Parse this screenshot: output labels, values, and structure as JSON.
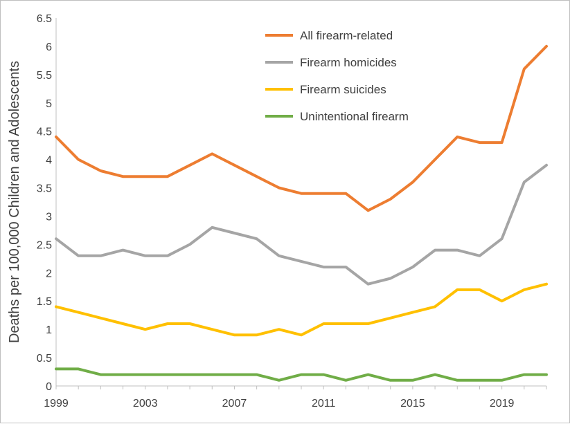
{
  "chart_data": {
    "type": "line",
    "title": "",
    "xlabel": "",
    "ylabel": "Deaths per 100,000 Children and Adolescents",
    "x": [
      1999,
      2000,
      2001,
      2002,
      2003,
      2004,
      2005,
      2006,
      2007,
      2008,
      2009,
      2010,
      2011,
      2012,
      2013,
      2014,
      2015,
      2016,
      2017,
      2018,
      2019,
      2020,
      2021
    ],
    "xlim": [
      1999,
      2021
    ],
    "x_tick_labels": [
      "1999",
      "2003",
      "2007",
      "2011",
      "2015",
      "2019"
    ],
    "ylim": [
      0,
      6.5
    ],
    "y_tick_labels": [
      "0",
      "0.5",
      "1",
      "1.5",
      "2",
      "2.5",
      "3",
      "3.5",
      "4",
      "4.5",
      "5",
      "5.5",
      "6",
      "6.5"
    ],
    "grid": false,
    "legend_position": "top-center",
    "series": [
      {
        "name": "All firearm-related",
        "color": "#ED7D31",
        "values": [
          4.4,
          4.0,
          3.8,
          3.7,
          3.7,
          3.7,
          3.9,
          4.1,
          3.9,
          3.7,
          3.5,
          3.4,
          3.4,
          3.4,
          3.1,
          3.3,
          3.6,
          4.0,
          4.4,
          4.3,
          4.3,
          5.6,
          6.0
        ]
      },
      {
        "name": "Firearm homicides",
        "color": "#A5A5A5",
        "values": [
          2.6,
          2.3,
          2.3,
          2.4,
          2.3,
          2.3,
          2.5,
          2.8,
          2.7,
          2.6,
          2.3,
          2.2,
          2.1,
          2.1,
          1.8,
          1.9,
          2.1,
          2.4,
          2.4,
          2.3,
          2.6,
          3.6,
          3.9
        ]
      },
      {
        "name": "Firearm suicides",
        "color": "#FFC000",
        "values": [
          1.4,
          1.3,
          1.2,
          1.1,
          1.0,
          1.1,
          1.1,
          1.0,
          0.9,
          0.9,
          1.0,
          0.9,
          1.1,
          1.1,
          1.1,
          1.2,
          1.3,
          1.4,
          1.7,
          1.7,
          1.5,
          1.7,
          1.8
        ]
      },
      {
        "name": "Unintentional firearm",
        "color": "#70AD47",
        "values": [
          0.3,
          0.3,
          0.2,
          0.2,
          0.2,
          0.2,
          0.2,
          0.2,
          0.2,
          0.2,
          0.1,
          0.2,
          0.2,
          0.1,
          0.2,
          0.1,
          0.1,
          0.2,
          0.1,
          0.1,
          0.1,
          0.2,
          0.2
        ]
      }
    ]
  }
}
